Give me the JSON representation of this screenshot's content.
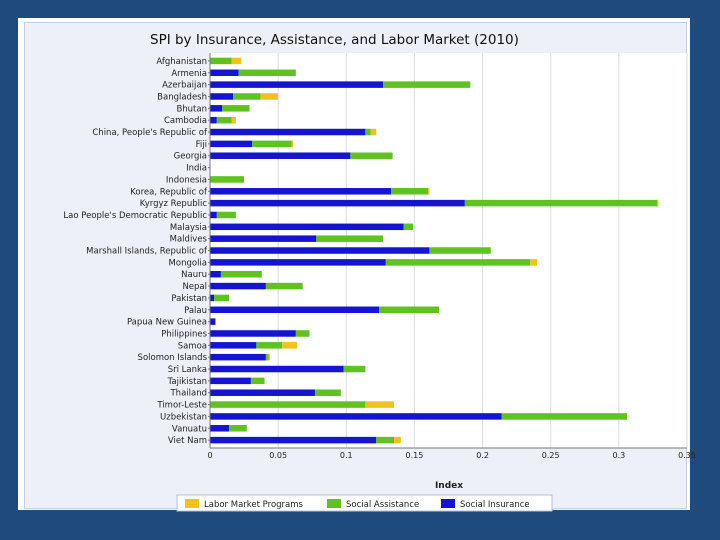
{
  "chart_data": {
    "type": "bar",
    "orientation": "horizontal",
    "stacked": true,
    "title": "SPI by Insurance, Assistance, and Labor Market (2010)",
    "xlabel": "Index",
    "ylabel": "",
    "xlim": [
      0,
      0.35
    ],
    "xticks": [
      "0",
      "0.05",
      "0.1",
      "0.15",
      "0.2",
      "0.25",
      "0.3",
      "0.35"
    ],
    "grid": true,
    "legend_position": "bottom",
    "categories": [
      "Afghanistan",
      "Armenia",
      "Azerbaijan",
      "Bangladesh",
      "Bhutan",
      "Cambodia",
      "China, People's Republic of",
      "Fiji",
      "Georgia",
      "India",
      "Indonesia",
      "Korea, Republic of",
      "Kyrgyz Republic",
      "Lao People's Democratic Republic",
      "Malaysia",
      "Maldives",
      "Marshall Islands, Republic of",
      "Mongolia",
      "Nauru",
      "Nepal",
      "Pakistan",
      "Palau",
      "Papua New Guinea",
      "Philippines",
      "Samoa",
      "Solomon Islands",
      "Sri Lanka",
      "Tajikistan",
      "Thailand",
      "Timor-Leste",
      "Uzbekistan",
      "Vanuatu",
      "Viet Nam"
    ],
    "series": [
      {
        "name": "Social Insurance",
        "color": "#1414d2",
        "values": [
          0,
          0.021,
          0.127,
          0.017,
          0.009,
          0.005,
          0.114,
          0.031,
          0.103,
          0,
          0,
          0.133,
          0.187,
          0.005,
          0.142,
          0.078,
          0.161,
          0.129,
          0.008,
          0.041,
          0.003,
          0.124,
          0.004,
          0.063,
          0.034,
          0.041,
          0.098,
          0.03,
          0.077,
          0,
          0.214,
          0.014,
          0.122
        ]
      },
      {
        "name": "Social Assistance",
        "color": "#5fc31f",
        "values": [
          0.016,
          0.042,
          0.064,
          0.02,
          0.02,
          0.011,
          0.004,
          0.029,
          0.031,
          0,
          0.025,
          0.027,
          0.141,
          0.014,
          0.007,
          0.049,
          0.045,
          0.106,
          0.03,
          0.027,
          0.011,
          0.044,
          0,
          0.01,
          0.019,
          0.002,
          0.016,
          0.01,
          0.019,
          0.114,
          0.092,
          0.013,
          0.013
        ]
      },
      {
        "name": "Labor Market Programs",
        "color": "#f1c21b",
        "values": [
          0.007,
          0,
          0,
          0.013,
          0,
          0.003,
          0.004,
          0.001,
          0,
          0,
          0,
          0.001,
          0.001,
          0,
          0,
          0,
          0,
          0.005,
          0,
          0,
          0,
          0,
          0,
          0,
          0.011,
          0.001,
          0,
          0,
          0,
          0.021,
          0,
          0,
          0.005
        ]
      }
    ],
    "legend": [
      "Labor Market Programs",
      "Social Assistance",
      "Social Insurance"
    ]
  }
}
